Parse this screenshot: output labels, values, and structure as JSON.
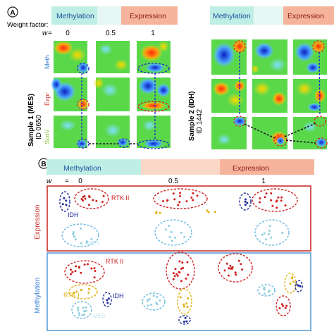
{
  "panelA": {
    "label": "A",
    "top_bar": {
      "left": "Methylation",
      "right": "Expression"
    },
    "weight_factor_label": "Weight factor:",
    "w_symbol": "w",
    "w_equals": "=",
    "w_values": [
      "0",
      "0.5",
      "1"
    ],
    "sample1": {
      "title": "Sample 1 (MES)",
      "id": "ID 0650"
    },
    "sample2": {
      "title": "Sample 2 (IDH)",
      "id": "ID 1442"
    },
    "row_labels": [
      "Meth",
      "Expr",
      "ScoV"
    ],
    "colors": {
      "methylation": "#bfeee4",
      "expression": "#f6b49c",
      "meth_label": "#3a7fd5",
      "expr_label": "#d23a3a",
      "scov_label": "#8cbf3a"
    }
  },
  "panelB": {
    "label": "B",
    "top_bar": {
      "left": "Methylation",
      "right": "Expression"
    },
    "w_symbol": "w",
    "w_equals": "=",
    "w_values": [
      "0",
      "0.5",
      "1"
    ],
    "side_labels": {
      "top": "Expression",
      "bottom": "Methylation"
    },
    "group_labels": {
      "rtk2": "RTK II",
      "idh": "IDH",
      "mes": "MES",
      "rtk1": "RTK I"
    },
    "colors": {
      "expression_box": "#c9302c",
      "methylation_box": "#5aa0d8",
      "rtk2": "#d02020",
      "idh": "#1a2a9a",
      "mes": "#8fd0e0",
      "rtk1": "#e0b010"
    }
  }
}
